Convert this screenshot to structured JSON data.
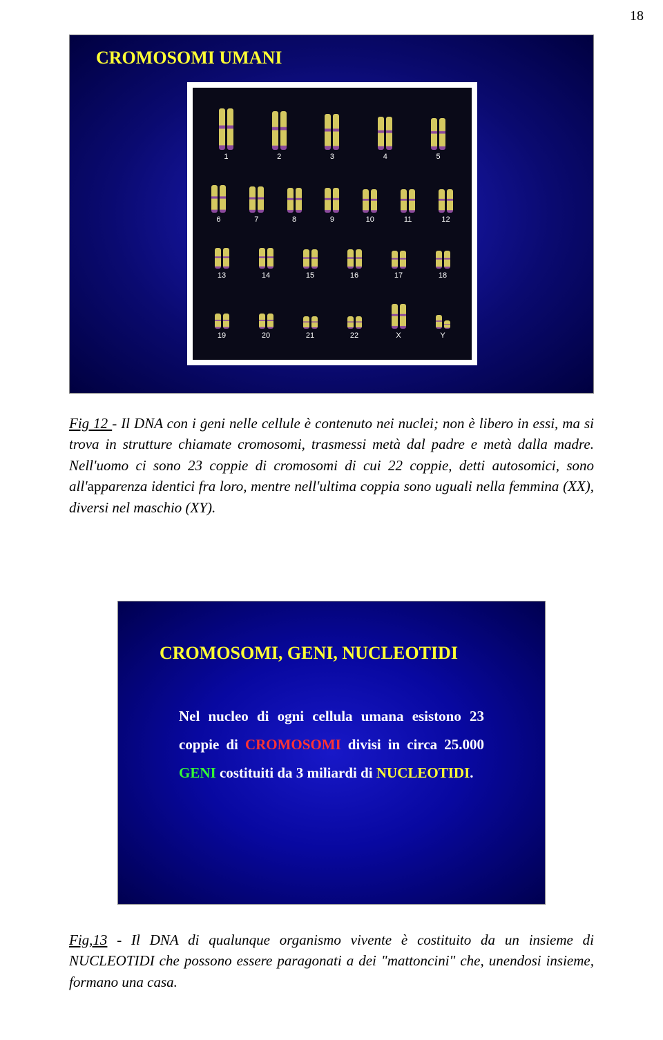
{
  "page_number": "18",
  "slide1": {
    "title": "CROMOSOMI  UMANI",
    "background_gradient": [
      "#2020cc",
      "#0a0a70",
      "#000040"
    ],
    "title_color": "#ffff33",
    "karyotype": {
      "background": "#0a0a18",
      "label_color": "#ffffff",
      "chrom_color_main": "#d4c860",
      "chrom_color_band": "#8b4a9c",
      "rows": [
        {
          "labels": [
            "1",
            "2",
            "3",
            "4",
            "5"
          ],
          "heights": [
            60,
            56,
            52,
            48,
            46
          ]
        },
        {
          "labels": [
            "6",
            "7",
            "8",
            "9",
            "10",
            "11",
            "12"
          ],
          "heights": [
            40,
            38,
            36,
            36,
            34,
            34,
            34
          ]
        },
        {
          "labels": [
            "13",
            "14",
            "15",
            "16",
            "17",
            "18"
          ],
          "heights": [
            30,
            30,
            28,
            28,
            26,
            26
          ]
        },
        {
          "labels": [
            "19",
            "20",
            "21",
            "22",
            "X",
            "Y"
          ],
          "heights": [
            22,
            22,
            18,
            18,
            36,
            20
          ]
        }
      ]
    }
  },
  "caption1": {
    "lead": "Fig 12 ",
    "text_before": "- Il DNA con i geni nelle cellule è contenuto nei nuclei; non è libero in essi, ma si trova in strutture chiamate cromosomi, trasmessi metà dal padre e metà dalla madre. Nell'uomo ci sono 23 coppie di cromosomi di cui 22 coppie, detti autosomici, sono all'",
    "word_ap": "ap",
    "text_mid": "parenza identici fra loro, mentre nell'ultima coppia sono uguali nella femmina (XX), diversi nel maschio (XY)."
  },
  "slide2": {
    "title": "CROMOSOMI, GENI, NUCLEOTIDI",
    "title_color": "#ffff33",
    "background_gradient": [
      "#1818c8",
      "#0808a0",
      "#000050"
    ],
    "body_parts": {
      "p1": "Nel  nucleo di ogni  cellula  umana esistono 23 coppie di ",
      "kw1": "CROMOSOMI",
      "p2": " divisi in circa 25.000 ",
      "kw2": "GENI",
      "p3": "  costituiti  da  3  miliardi  di ",
      "kw3": "NUCLEOTIDI",
      "p4": "."
    },
    "kw1_color": "#ff3333",
    "kw2_color": "#33ff33",
    "kw3_color": "#ffff33",
    "body_color": "#ffffff"
  },
  "caption2": {
    "lead": "Fig,13",
    "text": " - Il DNA di qualunque organismo vivente è costituito da un insieme di NUCLEOTIDI che possono essere paragonati a dei \"mattoncini\" che, unendosi insieme, formano una casa."
  }
}
